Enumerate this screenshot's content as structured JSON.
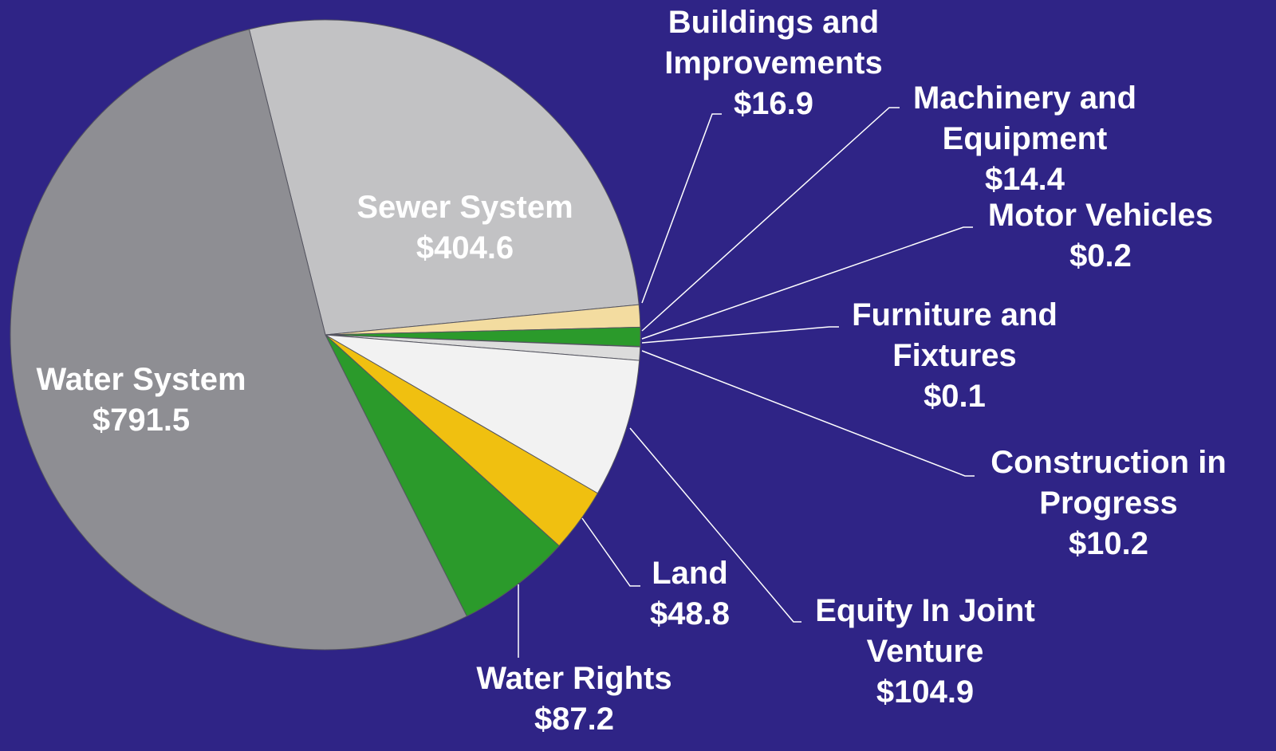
{
  "chart_data": {
    "type": "pie",
    "categories": [
      "Sewer System",
      "Buildings and Improvements",
      "Machinery and Equipment",
      "Motor Vehicles",
      "Furniture and Fixtures",
      "Construction in Progress",
      "Equity In Joint Venture",
      "Land",
      "Water Rights",
      "Water System"
    ],
    "values": [
      404.6,
      16.9,
      14.4,
      0.2,
      0.1,
      10.2,
      104.9,
      48.8,
      87.2,
      791.5
    ],
    "value_labels": [
      "$404.6",
      "$16.9",
      "$14.4",
      "$0.2",
      "$0.1",
      "$10.2",
      "$104.9",
      "$48.8",
      "$87.2",
      "$791.5"
    ],
    "colors": [
      "#c2c2c4",
      "#f3dca0",
      "#2b9a2b",
      "#9a9aa6",
      "#b8b8c4",
      "#dcdcdc",
      "#f2f2f2",
      "#f0c010",
      "#2b9a2b",
      "#8e8e93"
    ]
  }
}
